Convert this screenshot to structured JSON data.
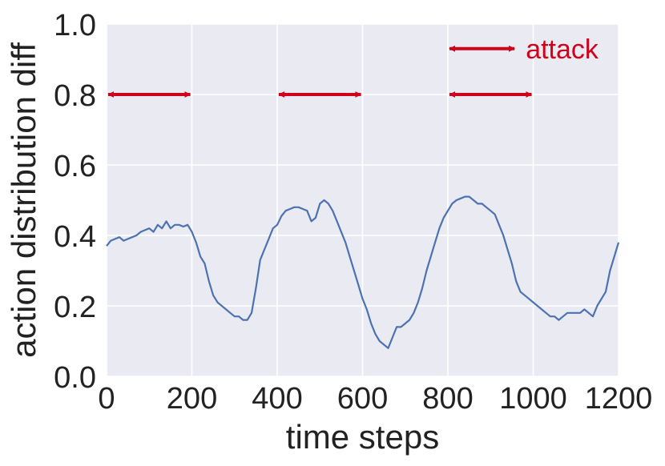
{
  "chart_data": {
    "type": "line",
    "xlabel": "time steps",
    "ylabel": "action distribution diff",
    "xlim": [
      0,
      1200
    ],
    "ylim": [
      0.0,
      1.0
    ],
    "xticks": [
      0,
      200,
      400,
      600,
      800,
      1000,
      1200
    ],
    "xtick_labels": [
      "0",
      "200",
      "400",
      "600",
      "800",
      "1000",
      "1200"
    ],
    "yticks": [
      0.0,
      0.2,
      0.4,
      0.6,
      0.8,
      1.0
    ],
    "ytick_labels": [
      "0.0",
      "0.2",
      "0.4",
      "0.6",
      "0.8",
      "1.0"
    ],
    "grid": true,
    "colors": {
      "background": "#eaeaf2",
      "grid": "#ffffff",
      "line": "#4c72b0",
      "attack": "#d0021b"
    },
    "legend": {
      "label": "attack",
      "placement": "top-right",
      "x_range": [
        800,
        960
      ],
      "y": 0.93
    },
    "attack_intervals": [
      {
        "start": 0,
        "end": 200,
        "y": 0.8
      },
      {
        "start": 400,
        "end": 600,
        "y": 0.8
      },
      {
        "start": 800,
        "end": 1000,
        "y": 0.8
      }
    ],
    "series": [
      {
        "x": [
          0,
          10,
          20,
          30,
          40,
          50,
          60,
          70,
          80,
          90,
          100,
          110,
          120,
          130,
          140,
          150,
          160,
          170,
          180,
          190,
          200,
          210,
          220,
          230,
          240,
          250,
          260,
          270,
          280,
          290,
          300,
          310,
          320,
          330,
          340,
          350,
          360,
          370,
          380,
          390,
          400,
          410,
          420,
          430,
          440,
          450,
          460,
          470,
          480,
          490,
          500,
          510,
          520,
          530,
          540,
          550,
          560,
          570,
          580,
          590,
          600,
          610,
          620,
          630,
          640,
          650,
          660,
          670,
          680,
          690,
          700,
          710,
          720,
          730,
          740,
          750,
          760,
          770,
          780,
          790,
          800,
          810,
          820,
          830,
          840,
          850,
          860,
          870,
          880,
          890,
          900,
          910,
          920,
          930,
          940,
          950,
          960,
          970,
          980,
          990,
          1000,
          1010,
          1020,
          1030,
          1040,
          1050,
          1060,
          1070,
          1080,
          1090,
          1100,
          1110,
          1120,
          1130,
          1140,
          1150,
          1160,
          1170,
          1180,
          1190,
          1200
        ],
        "values": [
          0.37,
          0.385,
          0.39,
          0.395,
          0.385,
          0.39,
          0.395,
          0.4,
          0.41,
          0.415,
          0.42,
          0.41,
          0.43,
          0.42,
          0.44,
          0.42,
          0.43,
          0.43,
          0.425,
          0.43,
          0.41,
          0.38,
          0.34,
          0.32,
          0.27,
          0.23,
          0.21,
          0.2,
          0.19,
          0.18,
          0.17,
          0.17,
          0.16,
          0.16,
          0.18,
          0.25,
          0.33,
          0.36,
          0.39,
          0.42,
          0.43,
          0.455,
          0.47,
          0.475,
          0.48,
          0.48,
          0.475,
          0.47,
          0.44,
          0.45,
          0.49,
          0.5,
          0.49,
          0.47,
          0.44,
          0.41,
          0.38,
          0.34,
          0.3,
          0.26,
          0.22,
          0.19,
          0.15,
          0.12,
          0.1,
          0.09,
          0.08,
          0.11,
          0.14,
          0.14,
          0.15,
          0.16,
          0.18,
          0.21,
          0.25,
          0.3,
          0.34,
          0.38,
          0.42,
          0.45,
          0.47,
          0.49,
          0.5,
          0.505,
          0.51,
          0.51,
          0.5,
          0.49,
          0.49,
          0.48,
          0.47,
          0.46,
          0.43,
          0.4,
          0.36,
          0.32,
          0.27,
          0.24,
          0.23,
          0.22,
          0.21,
          0.2,
          0.19,
          0.18,
          0.17,
          0.17,
          0.16,
          0.17,
          0.18,
          0.18,
          0.18,
          0.18,
          0.19,
          0.18,
          0.17,
          0.2,
          0.22,
          0.24,
          0.3,
          0.34,
          0.38
        ]
      }
    ]
  }
}
